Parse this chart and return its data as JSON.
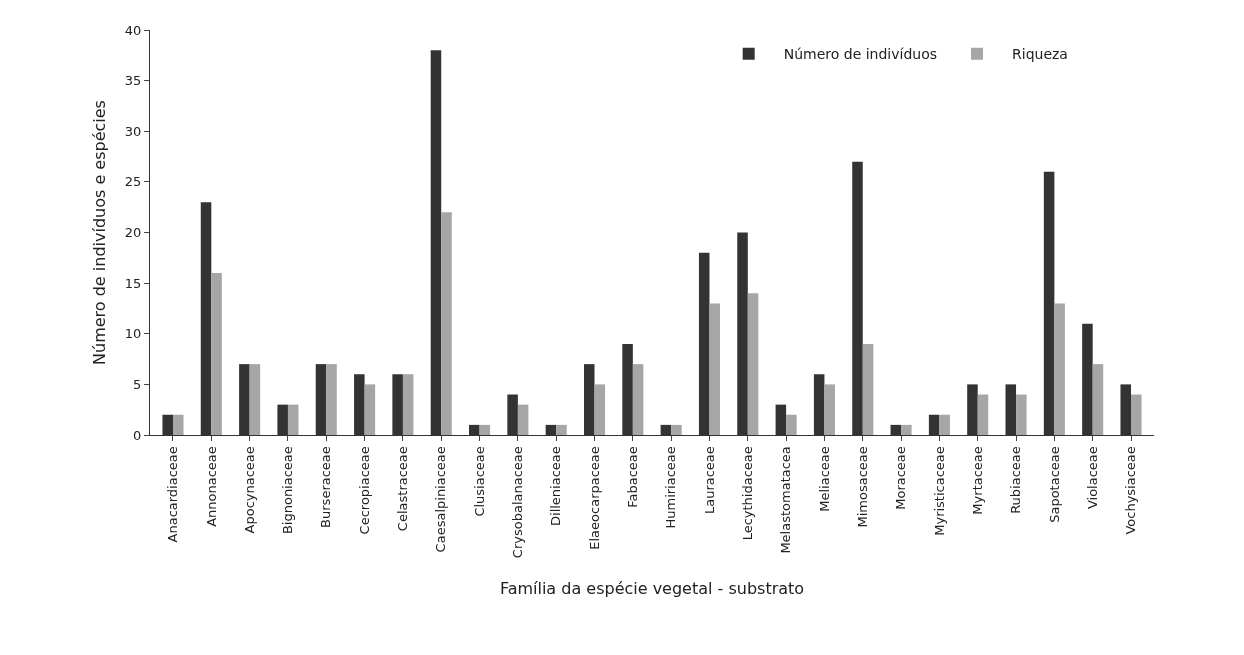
{
  "chart_data": {
    "type": "bar",
    "xlabel": "Família da espécie vegetal - substrato",
    "ylabel": "Número de indivíduos e espécies",
    "categories": [
      "Anacardiaceae",
      "Annonaceae",
      "Apocynaceae",
      "Bignoniaceae",
      "Burseraceae",
      "Cecropiaceae",
      "Celastraceae",
      "Caesalpiniaceae",
      "Clusiaceae",
      "Crysobalanaceae",
      "Dilleniaceae",
      "Elaeocarpaceae",
      "Fabaceae",
      "Humiriaceae",
      "Lauraceae",
      "Lecythidaceae",
      "Melastomatacea",
      "Meliaceae",
      "Mimosaceae",
      "Moraceae",
      "Myristicaceae",
      "Myrtaceae",
      "Rubiaceae",
      "Sapotaceae",
      "Violaceae",
      "Vochysiaceae"
    ],
    "series": [
      {
        "name": "Número de indivíduos",
        "color": "#333333",
        "values": [
          2,
          23,
          7,
          3,
          7,
          6,
          6,
          38,
          1,
          4,
          1,
          7,
          9,
          1,
          18,
          20,
          3,
          6,
          27,
          1,
          2,
          5,
          5,
          26,
          11,
          5
        ]
      },
      {
        "name": "Riqueza",
        "color": "#a6a6a6",
        "values": [
          2,
          16,
          7,
          3,
          7,
          5,
          6,
          22,
          1,
          3,
          1,
          5,
          7,
          1,
          13,
          14,
          2,
          5,
          9,
          1,
          2,
          4,
          4,
          13,
          7,
          4
        ]
      }
    ],
    "ylim": [
      0,
      40
    ],
    "yticks": [
      0,
      5,
      10,
      15,
      20,
      25,
      30,
      35,
      40
    ],
    "legend": "top right"
  }
}
